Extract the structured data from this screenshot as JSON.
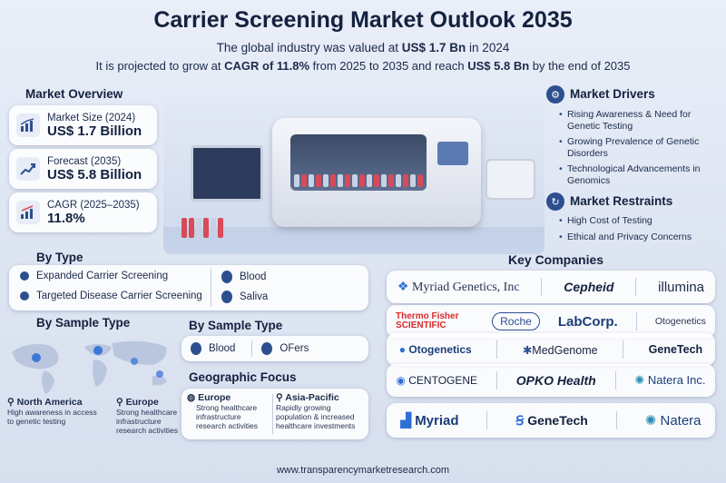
{
  "header": {
    "title": "Carrier Screening Market Outlook 2035",
    "line1_pre": "The global industry was valued at ",
    "line1_val": "US$ 1.7 Bn",
    "line1_post": " in 2024",
    "line2_pre": "It is projected to grow at ",
    "line2_cagr": "CAGR of 11.8%",
    "line2_mid": " from 2025 to 2035 and reach ",
    "line2_val": "US$ 5.8 Bn",
    "line2_post": " by the end of 2035"
  },
  "overview": {
    "title": "Market Overview",
    "stats": [
      {
        "label": "Market Size (2024)",
        "value": "US$ 1.7 Billion",
        "icon": "bar-chart-icon"
      },
      {
        "label": "Forecast (2035)",
        "value": "US$ 5.8 Billion",
        "icon": "trend-up-icon"
      },
      {
        "label": "CAGR (2025–2035)",
        "value": "11.8%",
        "icon": "growth-chart-icon"
      }
    ]
  },
  "drivers": {
    "title": "Market Drivers",
    "items": [
      "Rising Awareness & Need for Genetic Testing",
      "Growing Prevalence of Genetic Disorders",
      "Technological Advancements in Genomics"
    ]
  },
  "restraints": {
    "title": "Market Restraints",
    "items": [
      "High Cost of Testing",
      "Ethical and Privacy Concerns"
    ]
  },
  "by_type": {
    "title": "By Type",
    "items": [
      "Expanded Carrier Screening",
      "Targeted Disease Carrier Screening"
    ],
    "samples": [
      "Blood",
      "Saliva"
    ]
  },
  "by_sample_left": {
    "title": "By Sample Type",
    "regions": [
      {
        "name": "North America",
        "desc": "High awareness in access to genetic testing"
      },
      {
        "name": "Europe",
        "desc": "Strong healthcare infrastructure research activities"
      }
    ]
  },
  "by_sample_right": {
    "title": "By Sample Type",
    "items": [
      "Blood",
      "OFers"
    ]
  },
  "geo": {
    "title": "Geographic Focus",
    "regions": [
      {
        "name": "Europe",
        "desc": "Strong healthcare infrastructure research activities"
      },
      {
        "name": "Asia-Pacific",
        "desc": "Rapidly growing population & increased healthcare investments"
      }
    ]
  },
  "companies": {
    "title": "Key Companies",
    "rows": [
      [
        "Myriad Genetics, Inc",
        "Cepheid",
        "illumina"
      ],
      [
        "Thermo Fisher SCIENTIFIC",
        "Roche",
        "LabCorp.",
        "Otogenetics"
      ],
      [
        "Otogenetics",
        "MedGenome",
        "GeneTech"
      ],
      [
        "CENTOGENE",
        "OPKO Health",
        "Natera Inc."
      ],
      [
        "Myriad",
        "GeneTech",
        "Natera"
      ]
    ]
  },
  "footer": "www.transparencymarketresearch.com",
  "colors": {
    "accent": "#2d4f8f",
    "title": "#14213f",
    "red": "#d84a5a"
  }
}
